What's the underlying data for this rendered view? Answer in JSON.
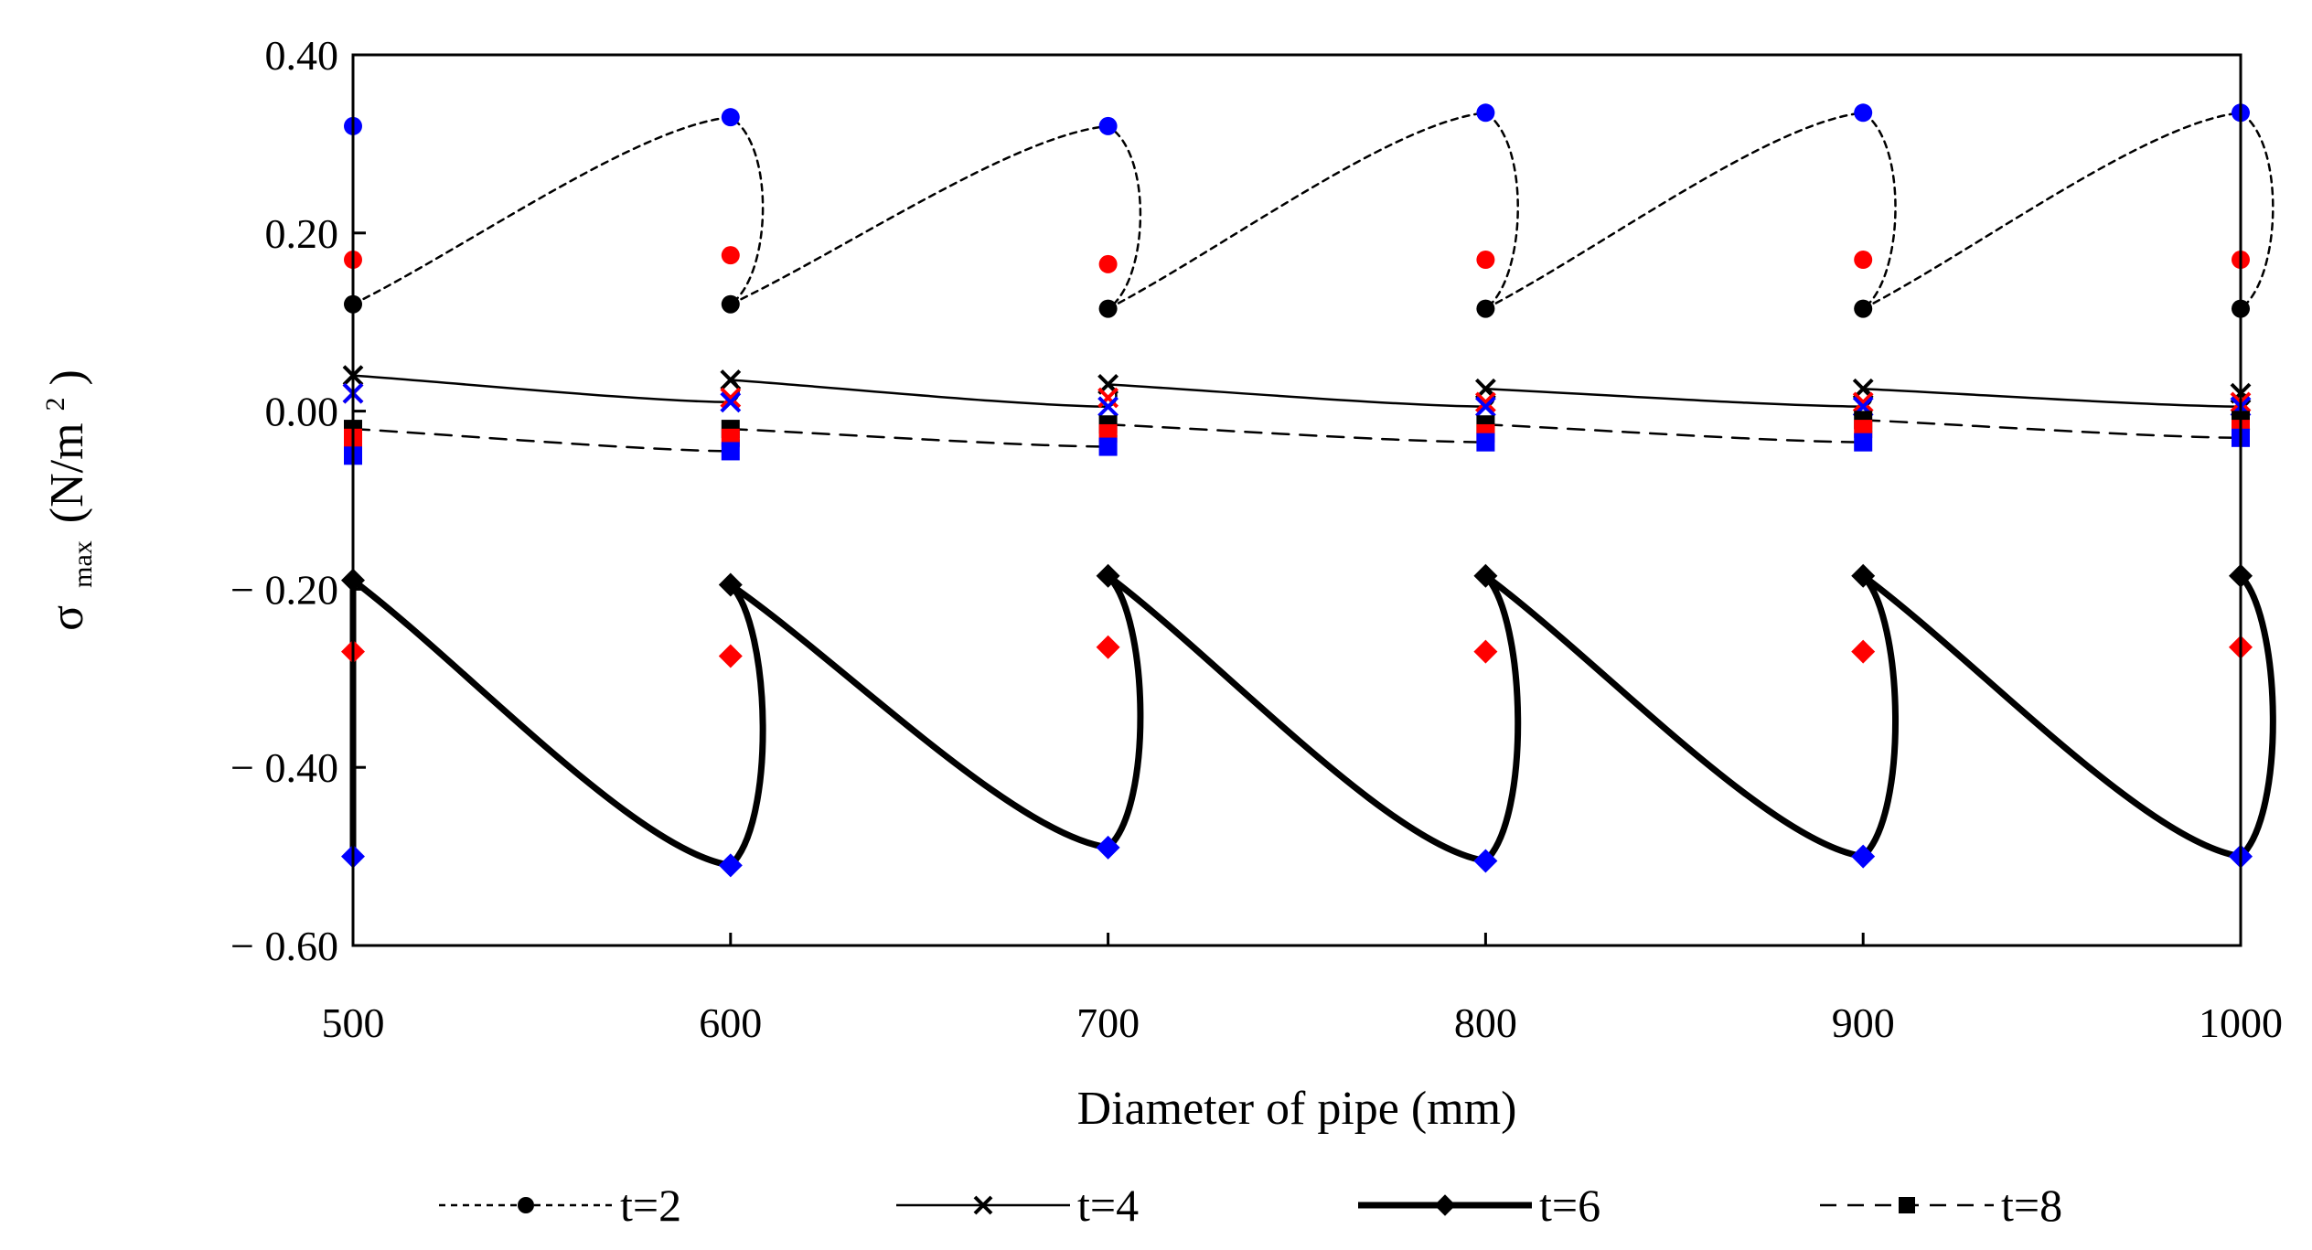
{
  "chart_data": {
    "type": "line",
    "title": "",
    "xlabel": "Diameter of pipe (mm)",
    "ylabel": {
      "sigma": "σ",
      "sub": "max",
      "units": "(N/m",
      "sup": "2",
      "close": ")"
    },
    "xlim": [
      500,
      1000
    ],
    "ylim": [
      -0.6,
      0.4
    ],
    "x_ticks": [
      {
        "value": 500,
        "label": "500"
      },
      {
        "value": 600,
        "label": "600"
      },
      {
        "value": 700,
        "label": "700"
      },
      {
        "value": 800,
        "label": "800"
      },
      {
        "value": 900,
        "label": "900"
      },
      {
        "value": 1000,
        "label": "1000"
      }
    ],
    "y_ticks": [
      {
        "value": 0.4,
        "label": "0.40"
      },
      {
        "value": 0.2,
        "label": "0.20"
      },
      {
        "value": 0.0,
        "label": "0.00"
      },
      {
        "value": -0.2,
        "label": "− 0.20"
      },
      {
        "value": -0.4,
        "label": "− 0.40"
      },
      {
        "value": -0.6,
        "label": "− 0.60"
      }
    ],
    "grid": false,
    "legend_position": "bottom",
    "colors": {
      "axis": "#000000",
      "line": "#000000",
      "red": "#ff0000",
      "blue": "#0000ff"
    },
    "series": [
      {
        "name": "t=2",
        "style": "dotted",
        "marker": "circle",
        "values": [
          {
            "x": 500,
            "black": 0.12,
            "red": 0.17,
            "blue": 0.32
          },
          {
            "x": 600,
            "black": 0.12,
            "red": 0.175,
            "blue": 0.33
          },
          {
            "x": 700,
            "black": 0.115,
            "red": 0.165,
            "blue": 0.32
          },
          {
            "x": 800,
            "black": 0.115,
            "red": 0.17,
            "blue": 0.335
          },
          {
            "x": 900,
            "black": 0.115,
            "red": 0.17,
            "blue": 0.335
          },
          {
            "x": 1000,
            "black": 0.115,
            "red": 0.17,
            "blue": 0.335
          }
        ]
      },
      {
        "name": "t=4",
        "style": "solid-thin",
        "marker": "x",
        "values": [
          {
            "x": 500,
            "black": 0.04,
            "red": 0.02,
            "blue": 0.02
          },
          {
            "x": 600,
            "black": 0.035,
            "red": 0.015,
            "blue": 0.01
          },
          {
            "x": 700,
            "black": 0.03,
            "red": 0.015,
            "blue": 0.005
          },
          {
            "x": 800,
            "black": 0.025,
            "red": 0.01,
            "blue": 0.005
          },
          {
            "x": 900,
            "black": 0.025,
            "red": 0.01,
            "blue": 0.005
          },
          {
            "x": 1000,
            "black": 0.02,
            "red": 0.01,
            "blue": 0.005
          }
        ]
      },
      {
        "name": "t=6",
        "style": "solid-thick",
        "marker": "diamond",
        "values": [
          {
            "x": 500,
            "black": -0.19,
            "red": -0.27,
            "blue": -0.5
          },
          {
            "x": 600,
            "black": -0.195,
            "red": -0.275,
            "blue": -0.51
          },
          {
            "x": 700,
            "black": -0.185,
            "red": -0.265,
            "blue": -0.49
          },
          {
            "x": 800,
            "black": -0.185,
            "red": -0.27,
            "blue": -0.505
          },
          {
            "x": 900,
            "black": -0.185,
            "red": -0.27,
            "blue": -0.5
          },
          {
            "x": 1000,
            "black": -0.185,
            "red": -0.265,
            "blue": -0.5
          }
        ]
      },
      {
        "name": "t=8",
        "style": "dashed",
        "marker": "square",
        "values": [
          {
            "x": 500,
            "black": -0.02,
            "red": -0.03,
            "blue": -0.05
          },
          {
            "x": 600,
            "black": -0.02,
            "red": -0.03,
            "blue": -0.045
          },
          {
            "x": 700,
            "black": -0.015,
            "red": -0.025,
            "blue": -0.04
          },
          {
            "x": 800,
            "black": -0.015,
            "red": -0.025,
            "blue": -0.035
          },
          {
            "x": 900,
            "black": -0.01,
            "red": -0.02,
            "blue": -0.035
          },
          {
            "x": 1000,
            "black": -0.01,
            "red": -0.02,
            "blue": -0.03
          }
        ]
      }
    ]
  }
}
